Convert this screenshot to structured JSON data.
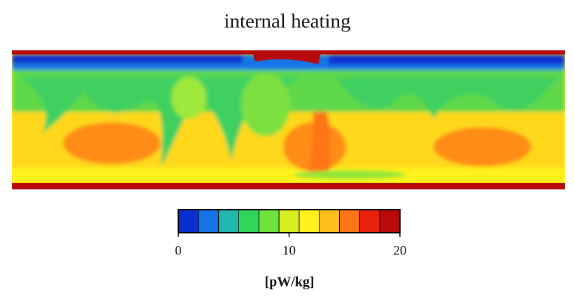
{
  "chart_data": {
    "type": "heatmap",
    "title": "internal heating",
    "colorbar": {
      "lim": [
        0,
        20
      ],
      "ticks": [
        0,
        10,
        20
      ],
      "label": "[pW/kg]",
      "colors": [
        "#0a2fd0",
        "#1474e6",
        "#1fb9b0",
        "#2fd65a",
        "#6fe23c",
        "#d8f022",
        "#fff21c",
        "#ffbe1a",
        "#ff7414",
        "#e8200e",
        "#b80a0a"
      ]
    }
  }
}
